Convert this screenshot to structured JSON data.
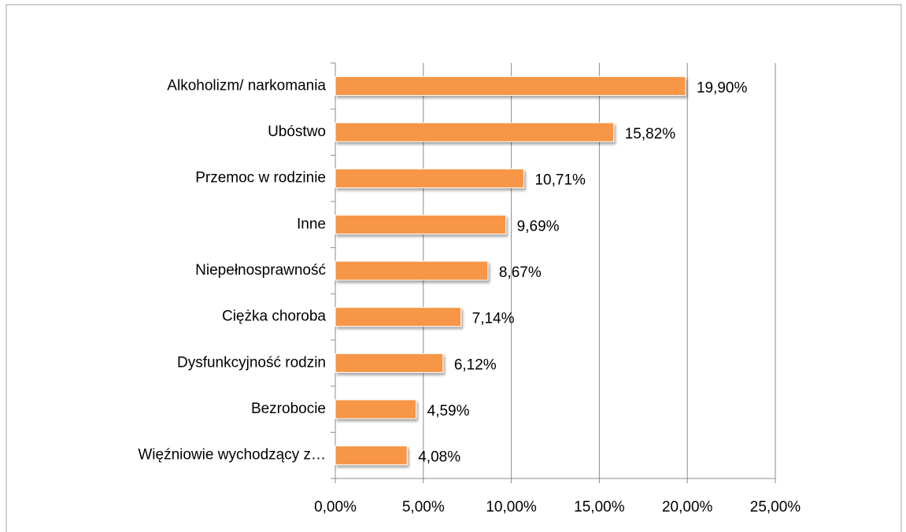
{
  "chart_data": {
    "type": "bar",
    "orientation": "horizontal",
    "categories": [
      "Alkoholizm/ narkomania",
      "Ubóstwo",
      "Przemoc w rodzinie",
      "Inne",
      "Niepełnosprawność",
      "Ciężka choroba",
      "Dysfunkcyjność rodzin",
      "Bezrobocie",
      "Więźniowie wychodzący z…"
    ],
    "values": [
      19.9,
      15.82,
      10.71,
      9.69,
      8.67,
      7.14,
      6.12,
      4.59,
      4.08
    ],
    "value_labels": [
      "19,90%",
      "15,82%",
      "10,71%",
      "9,69%",
      "8,67%",
      "7,14%",
      "6,12%",
      "4,59%",
      "4,08%"
    ],
    "color": "#f79646",
    "xlim": [
      0,
      25
    ],
    "xticks": [
      {
        "value": 0,
        "label": "0,00%"
      },
      {
        "value": 5,
        "label": "5,00%"
      },
      {
        "value": 10,
        "label": "10,00%"
      },
      {
        "value": 15,
        "label": "15,00%"
      },
      {
        "value": 20,
        "label": "20,00%"
      },
      {
        "value": 25,
        "label": "25,00%"
      }
    ],
    "grid": true
  }
}
